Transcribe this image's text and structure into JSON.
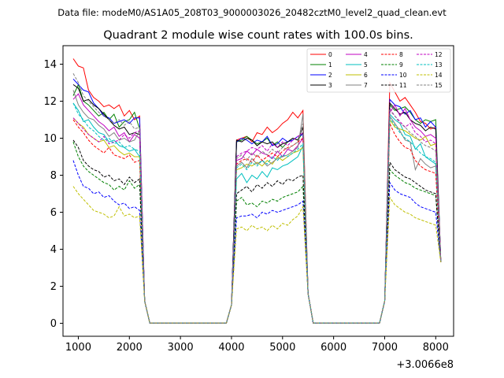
{
  "header": {
    "data_file": "Data file: modeM0/AS1A05_208T03_9000003026_20482cztM0_level2_quad_clean.evt"
  },
  "chart_data": {
    "type": "line",
    "title": "Quadrant 2 module wise count rates with 100.0s bins.",
    "xlabel": "",
    "ylabel": "",
    "x_offset_label": "+3.0066e8",
    "xlim": [
      700,
      8350
    ],
    "ylim": [
      -0.7,
      15.0
    ],
    "x_ticks": [
      1000,
      2000,
      3000,
      4000,
      5000,
      6000,
      7000,
      8000
    ],
    "y_ticks": [
      0,
      2,
      4,
      6,
      8,
      10,
      12,
      14
    ],
    "legend_position": "top-right",
    "series": [
      {
        "name": "0",
        "color": "#ff0000",
        "dash": "solid",
        "seg1": [
          14.3,
          13.9,
          13.8,
          12.6,
          12.2,
          12.0,
          11.7,
          11.8,
          11.6,
          11.8,
          11.2,
          11.5,
          11.0,
          11.2
        ],
        "seg2": [
          9.9,
          10.0,
          10.1,
          9.8,
          10.3,
          10.2,
          10.6,
          10.3,
          10.5,
          10.8,
          11.0,
          11.4,
          11.1,
          11.5
        ],
        "seg3": [
          13.0,
          12.5,
          12.0,
          12.2,
          11.8,
          11.4,
          10.9,
          10.8,
          10.5,
          10.6
        ]
      },
      {
        "name": "1",
        "color": "#008000",
        "dash": "solid",
        "seg1": [
          12.3,
          12.9,
          12.0,
          11.8,
          11.5,
          11.2,
          11.4,
          11.0,
          11.3,
          10.6,
          10.9,
          11.0,
          11.4,
          10.5
        ],
        "seg2": [
          9.8,
          9.9,
          10.1,
          9.9,
          9.7,
          9.8,
          10.0,
          9.6,
          9.8,
          9.5,
          9.8,
          10.0,
          9.9,
          10.3
        ],
        "seg3": [
          11.8,
          11.5,
          11.6,
          11.7,
          11.4,
          11.0,
          10.8,
          11.0,
          10.9,
          11.0
        ]
      },
      {
        "name": "2",
        "color": "#0000ff",
        "dash": "solid",
        "seg1": [
          13.2,
          12.9,
          12.6,
          12.5,
          11.9,
          11.6,
          11.2,
          11.1,
          10.8,
          10.9,
          11.0,
          10.8,
          11.1,
          11.1
        ],
        "seg2": [
          9.8,
          10.0,
          9.9,
          9.7,
          9.9,
          9.8,
          10.1,
          9.6,
          9.7,
          10.0,
          9.8,
          9.9,
          10.1,
          10.2
        ],
        "seg3": [
          12.1,
          11.8,
          11.7,
          11.3,
          11.5,
          11.0,
          11.1,
          10.6,
          10.9,
          10.6
        ]
      },
      {
        "name": "3",
        "color": "#000000",
        "dash": "solid",
        "seg1": [
          12.9,
          12.7,
          12.0,
          12.1,
          11.8,
          11.6,
          11.3,
          11.0,
          10.7,
          10.5,
          10.6,
          10.2,
          10.3,
          10.2
        ],
        "seg2": [
          9.9,
          9.8,
          10.0,
          9.9,
          9.6,
          9.8,
          9.7,
          9.8,
          9.5,
          9.7,
          9.8,
          10.0,
          9.9,
          10.6
        ],
        "seg3": [
          11.9,
          11.6,
          11.3,
          11.4,
          11.0,
          10.8,
          10.7,
          10.4,
          10.6,
          10.5
        ]
      },
      {
        "name": "4",
        "color": "#c000c0",
        "dash": "solid",
        "seg1": [
          12.1,
          12.4,
          11.8,
          11.5,
          11.2,
          10.9,
          10.7,
          10.4,
          10.6,
          10.1,
          10.3,
          9.8,
          10.2,
          10.0
        ],
        "seg2": [
          8.8,
          8.9,
          9.3,
          9.1,
          9.4,
          9.2,
          9.1,
          8.9,
          9.3,
          9.0,
          9.4,
          9.3,
          9.6,
          10.0
        ],
        "seg3": [
          11.4,
          11.8,
          11.2,
          11.6,
          11.0,
          10.6,
          10.4,
          10.1,
          10.2,
          10.0
        ]
      },
      {
        "name": "5",
        "color": "#00bfbf",
        "dash": "solid",
        "seg1": [
          11.9,
          11.5,
          10.9,
          11.0,
          10.6,
          10.3,
          10.2,
          9.8,
          9.9,
          9.6,
          9.5,
          9.3,
          9.4,
          9.0
        ],
        "seg2": [
          7.8,
          8.1,
          7.6,
          8.0,
          7.8,
          8.2,
          7.9,
          8.4,
          8.3,
          8.5,
          8.6,
          8.8,
          9.0,
          9.6
        ],
        "seg3": [
          11.3,
          11.0,
          10.8,
          10.2,
          10.1,
          9.4,
          9.7,
          9.0,
          8.8,
          8.6
        ]
      },
      {
        "name": "6",
        "color": "#bfbf00",
        "dash": "solid",
        "seg1": [
          11.1,
          10.8,
          10.6,
          10.2,
          10.0,
          9.8,
          9.9,
          9.5,
          9.6,
          9.3,
          9.1,
          9.2,
          9.0,
          9.0
        ],
        "seg2": [
          8.3,
          8.4,
          8.6,
          8.5,
          8.7,
          8.5,
          8.8,
          8.6,
          9.0,
          8.8,
          9.0,
          9.2,
          9.3,
          9.5
        ],
        "seg3": [
          11.0,
          10.6,
          10.5,
          10.4,
          10.2,
          10.0,
          9.9,
          10.1,
          9.6,
          9.7
        ]
      },
      {
        "name": "7",
        "color": "#808080",
        "dash": "solid",
        "seg1": [
          12.6,
          11.8,
          11.4,
          11.1,
          11.0,
          10.7,
          10.5,
          10.1,
          10.3,
          9.9,
          10.0,
          9.8,
          9.9,
          10.4
        ],
        "seg2": [
          8.5,
          8.7,
          8.4,
          8.9,
          8.6,
          8.8,
          8.5,
          8.7,
          8.9,
          9.0,
          9.1,
          9.3,
          9.5,
          11.3
        ],
        "seg3": [
          11.2,
          10.8,
          10.4,
          9.9,
          9.8,
          8.3,
          8.9,
          8.6,
          8.4,
          8.5
        ]
      },
      {
        "name": "8",
        "color": "#ff0000",
        "dash": "dashed",
        "seg1": [
          11.0,
          10.6,
          10.3,
          9.9,
          9.6,
          9.4,
          9.2,
          9.5,
          9.1,
          9.0,
          8.9,
          9.1,
          8.7,
          8.8
        ],
        "seg2": [
          8.6,
          8.8,
          8.9,
          8.7,
          9.1,
          8.8,
          9.0,
          9.2,
          9.0,
          9.3,
          9.5,
          9.6,
          9.8,
          10.0
        ],
        "seg3": [
          10.8,
          10.2,
          9.8,
          9.5,
          9.4,
          8.8,
          8.5,
          8.3,
          8.2,
          8.1
        ]
      },
      {
        "name": "9",
        "color": "#008000",
        "dash": "dashed",
        "seg1": [
          9.8,
          9.0,
          8.5,
          8.2,
          8.0,
          7.8,
          7.6,
          7.5,
          7.2,
          7.4,
          7.2,
          7.7,
          7.3,
          7.5
        ],
        "seg2": [
          6.6,
          6.8,
          6.4,
          6.5,
          6.3,
          6.6,
          6.5,
          6.7,
          6.6,
          6.8,
          6.9,
          7.0,
          7.1,
          7.4
        ],
        "seg3": [
          8.3,
          8.0,
          7.8,
          7.6,
          7.5,
          7.3,
          7.2,
          7.1,
          7.0,
          6.9
        ]
      },
      {
        "name": "10",
        "color": "#0000ff",
        "dash": "dashed",
        "seg1": [
          8.8,
          8.0,
          7.4,
          7.3,
          7.0,
          7.1,
          6.8,
          6.9,
          6.6,
          6.4,
          6.5,
          6.2,
          6.3,
          6.1
        ],
        "seg2": [
          5.7,
          5.8,
          5.8,
          5.9,
          5.7,
          6.0,
          5.9,
          6.1,
          6.0,
          6.1,
          6.2,
          6.3,
          6.4,
          6.6
        ],
        "seg3": [
          7.6,
          7.2,
          7.0,
          6.9,
          6.8,
          6.5,
          6.3,
          6.2,
          6.1,
          6.0
        ]
      },
      {
        "name": "11",
        "color": "#000000",
        "dash": "dashed",
        "seg1": [
          9.9,
          9.5,
          8.8,
          8.5,
          8.3,
          8.2,
          7.9,
          8.0,
          7.7,
          7.8,
          7.5,
          7.9,
          7.6,
          7.8
        ],
        "seg2": [
          7.0,
          7.2,
          7.4,
          7.1,
          7.5,
          7.3,
          7.6,
          7.4,
          7.7,
          7.5,
          7.8,
          7.7,
          7.9,
          8.0
        ],
        "seg3": [
          8.7,
          8.3,
          8.1,
          7.9,
          7.8,
          7.6,
          7.4,
          7.2,
          7.1,
          7.0
        ]
      },
      {
        "name": "12",
        "color": "#c000c0",
        "dash": "dashed",
        "seg1": [
          11.1,
          10.8,
          10.5,
          10.2,
          10.0,
          9.8,
          10.1,
          9.7,
          9.8,
          9.9,
          10.2,
          10.0,
          10.3,
          10.4
        ],
        "seg2": [
          9.0,
          9.2,
          9.3,
          9.5,
          9.4,
          9.6,
          9.3,
          9.7,
          9.5,
          9.8,
          9.6,
          9.9,
          10.1,
          10.3
        ],
        "seg3": [
          11.6,
          11.2,
          10.9,
          10.6,
          10.8,
          10.3,
          10.1,
          9.8,
          9.9,
          9.7
        ]
      },
      {
        "name": "13",
        "color": "#00bfbf",
        "dash": "dashed",
        "seg1": [
          11.9,
          11.3,
          11.0,
          10.6,
          10.4,
          10.1,
          9.9,
          10.0,
          9.7,
          9.8,
          9.5,
          9.6,
          9.4,
          9.3
        ],
        "seg2": [
          8.4,
          8.6,
          8.3,
          8.7,
          8.5,
          8.8,
          8.6,
          9.0,
          8.8,
          9.1,
          9.0,
          9.2,
          9.4,
          9.7
        ],
        "seg3": [
          11.1,
          10.7,
          10.3,
          10.0,
          9.8,
          9.5,
          9.2,
          9.0,
          8.9,
          8.7
        ]
      },
      {
        "name": "14",
        "color": "#bfbf00",
        "dash": "dashed",
        "seg1": [
          7.4,
          7.0,
          6.7,
          6.4,
          6.1,
          6.0,
          5.9,
          5.7,
          5.8,
          6.3,
          5.8,
          5.9,
          5.7,
          5.8
        ],
        "seg2": [
          5.1,
          5.2,
          5.0,
          5.3,
          5.1,
          5.2,
          5.0,
          5.3,
          5.1,
          5.4,
          5.3,
          5.6,
          5.8,
          6.3
        ],
        "seg3": [
          6.8,
          6.4,
          6.2,
          6.0,
          5.9,
          5.7,
          5.6,
          5.5,
          5.4,
          5.3
        ]
      },
      {
        "name": "15",
        "color": "#808080",
        "dash": "dashed",
        "seg1": [
          13.5,
          13.0,
          12.3,
          12.0,
          11.7,
          11.4,
          11.2,
          11.0,
          10.8,
          11.0,
          10.7,
          10.9,
          10.5,
          10.6
        ],
        "seg2": [
          8.9,
          9.1,
          8.8,
          9.2,
          9.0,
          9.3,
          9.1,
          9.4,
          9.2,
          9.5,
          9.4,
          9.6,
          9.8,
          10.8
        ],
        "seg3": [
          11.5,
          11.2,
          10.8,
          10.6,
          10.3,
          10.1,
          9.8,
          9.6,
          9.5,
          9.3
        ]
      }
    ]
  }
}
